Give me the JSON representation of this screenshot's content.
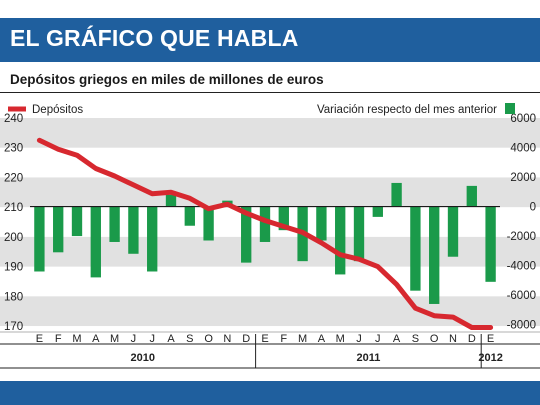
{
  "header": {
    "title": "EL GRÁFICO QUE HABLA"
  },
  "chart_data": {
    "type": "bar",
    "title": "Depósitos griegos en miles de millones de euros",
    "legend": {
      "line": "Depósitos",
      "bars": "Variación respecto del mes anterior"
    },
    "months": [
      "E",
      "F",
      "M",
      "A",
      "M",
      "J",
      "J",
      "A",
      "S",
      "O",
      "N",
      "D",
      "E",
      "F",
      "M",
      "A",
      "M",
      "J",
      "J",
      "A",
      "S",
      "O",
      "N",
      "D",
      "E"
    ],
    "years": [
      {
        "label": "2010",
        "start": 0,
        "end": 11
      },
      {
        "label": "2011",
        "start": 12,
        "end": 23
      },
      {
        "label": "2012",
        "start": 24,
        "end": 24
      }
    ],
    "series": [
      {
        "name": "Depósitos",
        "type": "line",
        "axis": "left",
        "values": [
          232.5,
          229.5,
          227.5,
          223,
          220.5,
          217.5,
          214.5,
          215,
          213,
          209.5,
          211,
          208,
          205.5,
          203.5,
          201.5,
          198,
          194,
          192.5,
          190,
          184,
          176,
          173.5,
          173,
          169.5,
          169.5
        ]
      },
      {
        "name": "Variación respecto del mes anterior",
        "type": "bar",
        "axis": "right",
        "values": [
          -4400,
          -3100,
          -2000,
          -4800,
          -2400,
          -3200,
          -4400,
          800,
          -1300,
          -2300,
          400,
          -3800,
          -2400,
          -1600,
          -3700,
          -2300,
          -4600,
          -3700,
          -700,
          1600,
          -5700,
          -6600,
          -3400,
          1400,
          -5100
        ]
      }
    ],
    "ylim_left": [
      168,
      240
    ],
    "yticks_left": [
      240,
      230,
      220,
      210,
      200,
      190,
      180,
      170
    ],
    "ylim_right": [
      -8500,
      6000
    ],
    "yticks_right": [
      6000,
      4000,
      2000,
      0,
      -2000,
      -4000,
      -6000,
      -8000
    ],
    "bands": "alternating gray horizontal bands",
    "colors": {
      "line": "#d7282f",
      "bar": "#1a9a4a",
      "band": "#e1e1e1",
      "banner": "#1f5f9e"
    }
  }
}
